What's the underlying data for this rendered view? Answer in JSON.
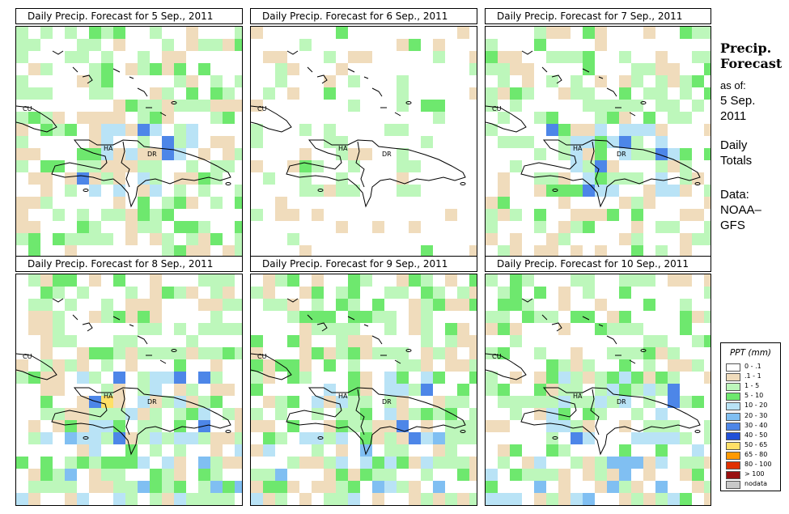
{
  "panels": [
    {
      "title": "Daily Precip. Forecast for  5 Sep., 2011"
    },
    {
      "title": "Daily Precip. Forecast for  6 Sep., 2011"
    },
    {
      "title": "Daily Precip. Forecast for  7 Sep., 2011"
    },
    {
      "title": "Daily Precip. Forecast for  8 Sep., 2011"
    },
    {
      "title": "Daily Precip. Forecast for  9 Sep., 2011"
    },
    {
      "title": "Daily Precip. Forecast for  10 Sep., 2011"
    }
  ],
  "map_labels": {
    "cuba": "CU",
    "haiti": "HA",
    "dominican_republic": "DR"
  },
  "sidebar": {
    "title_line1": "Precip.",
    "title_line2": "Forecast",
    "asof_label": "as of:",
    "asof_date1": "5 Sep.",
    "asof_date2": "2011",
    "daily_line1": "Daily",
    "daily_line2": "Totals",
    "data_line1": "Data:",
    "data_line2": "NOAA–",
    "data_line3": "GFS"
  },
  "legend": {
    "title": "PPT (mm)",
    "items": [
      {
        "label": "0 - .1",
        "color": "#ffffff"
      },
      {
        "label": ".1 - 1",
        "color": "#f0dcbc"
      },
      {
        "label": "1 - 5",
        "color": "#bdf7bb"
      },
      {
        "label": "5 - 10",
        "color": "#6ee86e"
      },
      {
        "label": "10 - 20",
        "color": "#b9e3f6"
      },
      {
        "label": "20 - 30",
        "color": "#80bff2"
      },
      {
        "label": "30 - 40",
        "color": "#4d86e8"
      },
      {
        "label": "40 - 50",
        "color": "#2150d8"
      },
      {
        "label": "50 - 65",
        "color": "#ffe066"
      },
      {
        "label": "65 - 80",
        "color": "#ff9900"
      },
      {
        "label": "80 - 100",
        "color": "#e03000"
      },
      {
        "label": "> 100",
        "color": "#991010"
      },
      {
        "label": "nodata",
        "color": "#c8c8c8"
      }
    ]
  }
}
